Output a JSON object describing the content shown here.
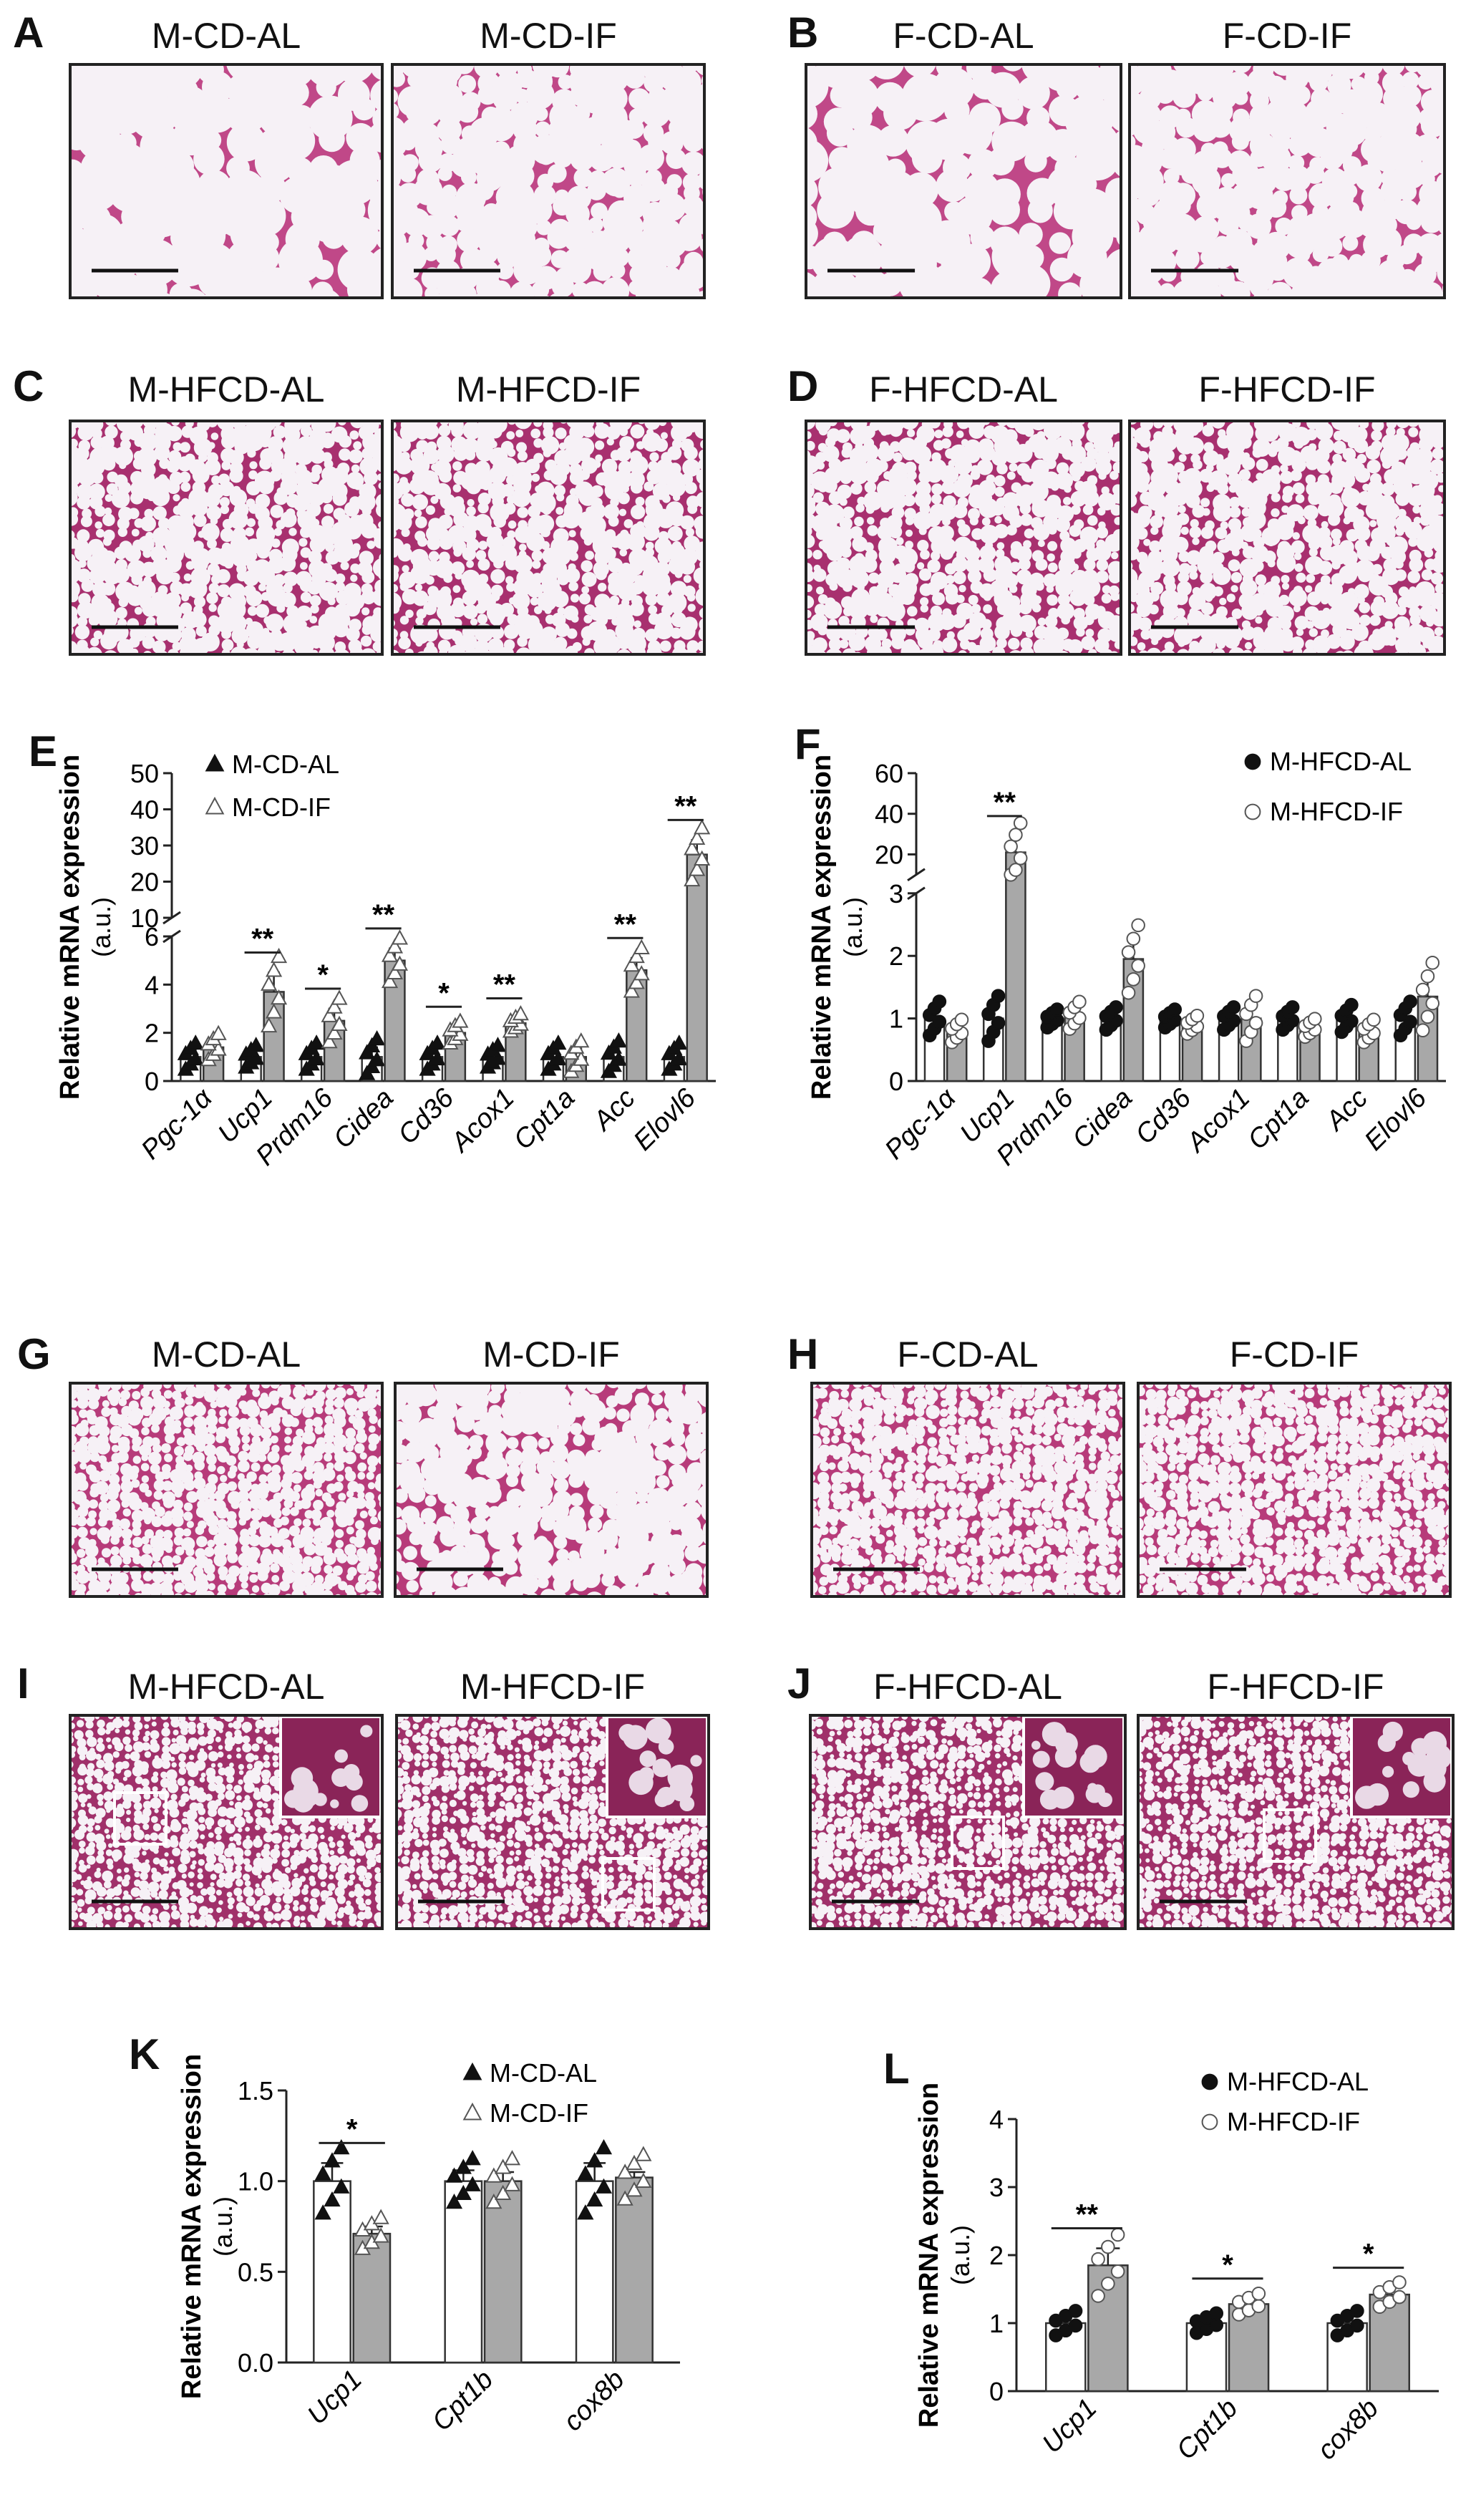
{
  "panels": {
    "A": {
      "label": "A",
      "left": "M-CD-AL",
      "right": "M-CD-IF"
    },
    "B": {
      "label": "B",
      "left": "F-CD-AL",
      "right": "F-CD-IF"
    },
    "C": {
      "label": "C",
      "left": "M-HFCD-AL",
      "right": "M-HFCD-IF"
    },
    "D": {
      "label": "D",
      "left": "F-HFCD-AL",
      "right": "F-HFCD-IF"
    },
    "E": {
      "label": "E"
    },
    "F": {
      "label": "F"
    },
    "G": {
      "label": "G",
      "left": "M-CD-AL",
      "right": "M-CD-IF"
    },
    "H": {
      "label": "H",
      "left": "F-CD-AL",
      "right": "F-CD-IF"
    },
    "I": {
      "label": "I",
      "left": "M-HFCD-AL",
      "right": "M-HFCD-IF"
    },
    "J": {
      "label": "J",
      "left": "F-HFCD-AL",
      "right": "F-HFCD-IF"
    },
    "K": {
      "label": "K"
    },
    "L": {
      "label": "L"
    }
  },
  "histology_colors": {
    "stain": "#b03a78",
    "lumen": "#f6f1f6",
    "border": "#222222"
  },
  "chart_data": [
    {
      "id": "E",
      "type": "bar",
      "ylabel": "Relative mRNA expression",
      "ylabel2": "(a.u.)",
      "categories": [
        "Pgc-1α",
        "Ucp1",
        "Prdm16",
        "Cidea",
        "Cd36",
        "Acox1",
        "Cpt1a",
        "Acc",
        "Elovl6"
      ],
      "series": [
        {
          "name": "M-CD-AL",
          "marker": "filled-triangle",
          "values": [
            1.0,
            1.0,
            1.0,
            1.0,
            1.0,
            1.0,
            1.0,
            1.0,
            1.0
          ],
          "sem": [
            0.3,
            0.25,
            0.3,
            0.4,
            0.3,
            0.25,
            0.3,
            0.35,
            0.3
          ]
        },
        {
          "name": "M-CD-IF",
          "marker": "open-triangle",
          "values": [
            1.4,
            3.7,
            2.5,
            5.0,
            2.0,
            2.4,
            1.0,
            4.6,
            27.5
          ],
          "sem": [
            0.3,
            0.8,
            0.5,
            0.5,
            0.25,
            0.2,
            0.35,
            0.5,
            4.0
          ]
        }
      ],
      "significance": [
        "",
        "**",
        "*",
        "**",
        "*",
        "**",
        "",
        "**",
        "**"
      ],
      "axis_break": {
        "lower": [
          0,
          6
        ],
        "upper": [
          10,
          50
        ]
      },
      "yticks_lower": [
        0,
        2,
        4,
        6
      ],
      "yticks_upper": [
        10,
        20,
        30,
        40,
        50
      ]
    },
    {
      "id": "F",
      "type": "bar",
      "ylabel": "Relative mRNA expression",
      "ylabel2": "(a.u.)",
      "categories": [
        "Pgc-1α",
        "Ucp1",
        "Prdm16",
        "Cidea",
        "Cd36",
        "Acox1",
        "Cpt1a",
        "Acc",
        "Elovl6"
      ],
      "series": [
        {
          "name": "M-HFCD-AL",
          "marker": "filled-circle",
          "values": [
            1.0,
            1.0,
            1.0,
            1.0,
            1.0,
            1.0,
            1.0,
            1.0,
            1.0
          ],
          "sem": [
            0.15,
            0.2,
            0.08,
            0.1,
            0.08,
            0.1,
            0.1,
            0.12,
            0.15
          ]
        },
        {
          "name": "M-HFCD-IF",
          "marker": "open-circle",
          "values": [
            0.8,
            21.0,
            1.05,
            1.95,
            0.9,
            1.0,
            0.85,
            0.8,
            1.35
          ],
          "sem": [
            0.1,
            8.0,
            0.12,
            0.3,
            0.08,
            0.2,
            0.08,
            0.1,
            0.3
          ]
        }
      ],
      "significance": [
        "",
        "**",
        "",
        "",
        "",
        "",
        "",
        "",
        ""
      ],
      "axis_break": {
        "lower": [
          0,
          3
        ],
        "upper": [
          10,
          60
        ]
      },
      "yticks_lower": [
        0,
        1,
        2,
        3
      ],
      "yticks_upper": [
        20,
        40,
        60
      ]
    },
    {
      "id": "K",
      "type": "bar",
      "ylabel": "Relative mRNA expression",
      "ylabel2": "(a.u.)",
      "categories": [
        "Ucp1",
        "Cpt1b",
        "cox8b"
      ],
      "series": [
        {
          "name": "M-CD-AL",
          "marker": "filled-triangle",
          "values": [
            1.0,
            1.0,
            1.0
          ],
          "sem": [
            0.1,
            0.06,
            0.1
          ]
        },
        {
          "name": "M-CD-IF",
          "marker": "open-triangle",
          "values": [
            0.71,
            1.0,
            1.02
          ],
          "sem": [
            0.04,
            0.05,
            0.03
          ]
        }
      ],
      "significance": [
        "*",
        "",
        ""
      ],
      "ylim": [
        0,
        1.5
      ],
      "yticks": [
        "0.0",
        "0.5",
        "1.0",
        "1.5"
      ]
    },
    {
      "id": "L",
      "type": "bar",
      "ylabel": "Relative mRNA expression",
      "ylabel2": "(a.u.)",
      "categories": [
        "Ucp1",
        "Cpt1b",
        "cox8b"
      ],
      "series": [
        {
          "name": "M-HFCD-AL",
          "marker": "filled-circle",
          "values": [
            1.0,
            1.0,
            1.0
          ],
          "sem": [
            0.1,
            0.08,
            0.1
          ]
        },
        {
          "name": "M-HFCD-IF",
          "marker": "open-circle",
          "values": [
            1.85,
            1.28,
            1.42
          ],
          "sem": [
            0.25,
            0.08,
            0.1
          ]
        }
      ],
      "significance": [
        "**",
        "*",
        "*"
      ],
      "ylim": [
        0,
        4
      ],
      "yticks": [
        "0",
        "1",
        "2",
        "3",
        "4"
      ]
    }
  ]
}
